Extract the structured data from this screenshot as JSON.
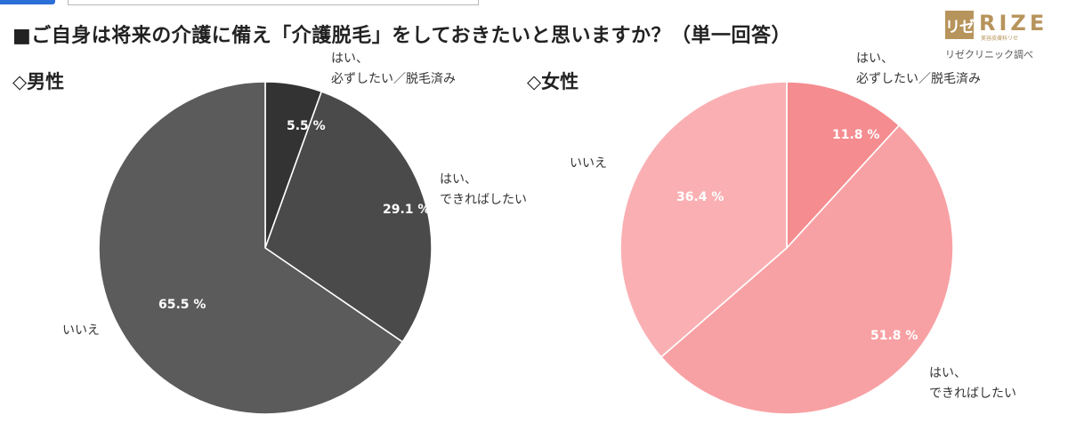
{
  "title": "■ご自身は将来の介護に備え「介護脱毛」をしておきたいと思いますか？（単一回答）",
  "logo": {
    "badge": "リゼ",
    "brand": "RIZE",
    "brand_sub": "美容皮膚科リゼ",
    "source": "リゼクリニック調べ"
  },
  "colors": {
    "male": [
      "#333333",
      "#4a4a4a",
      "#5b5b5b"
    ],
    "female": [
      "#f58c8f",
      "#f8a1a4",
      "#fab0b3"
    ]
  },
  "chart_data": [
    {
      "type": "pie",
      "title": "◇男性",
      "start_angle_deg": 0,
      "direction": "clockwise",
      "slices": [
        {
          "label_lines": [
            "はい、",
            "必ずしたい／脱毛済み"
          ],
          "value": 5.5,
          "display": "5.5 %"
        },
        {
          "label_lines": [
            "はい、",
            "できればしたい"
          ],
          "value": 29.1,
          "display": "29.1 %"
        },
        {
          "label_lines": [
            "いいえ"
          ],
          "value": 65.5,
          "display": "65.5 %"
        }
      ]
    },
    {
      "type": "pie",
      "title": "◇女性",
      "start_angle_deg": 0,
      "direction": "clockwise",
      "slices": [
        {
          "label_lines": [
            "はい、",
            "必ずしたい／脱毛済み"
          ],
          "value": 11.8,
          "display": "11.8 %"
        },
        {
          "label_lines": [
            "はい、",
            "できればしたい"
          ],
          "value": 51.8,
          "display": "51.8 %"
        },
        {
          "label_lines": [
            "いいえ"
          ],
          "value": 36.4,
          "display": "36.4 %"
        }
      ]
    }
  ]
}
